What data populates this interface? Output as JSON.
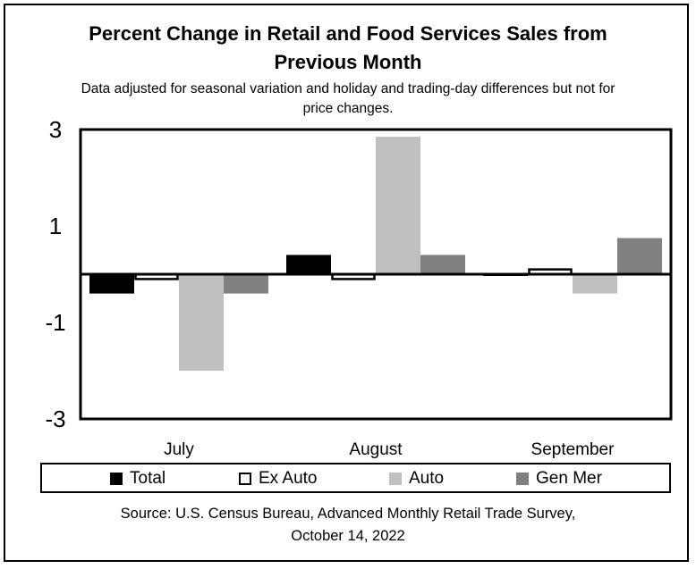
{
  "chart_data": {
    "type": "bar",
    "title_line1": "Percent Change in Retail and Food Services Sales from",
    "title_line2": "Previous Month",
    "subtitle_line1": "Data adjusted for seasonal variation and holiday and trading-day differences but not for",
    "subtitle_line2": "price changes.",
    "categories": [
      "July",
      "August",
      "September"
    ],
    "series": [
      {
        "name": "Total",
        "color": "#000000",
        "values": [
          -0.4,
          0.4,
          0.0
        ]
      },
      {
        "name": "Ex Auto",
        "color": "#ffffff",
        "stroke": "#000000",
        "values": [
          -0.1,
          -0.1,
          0.1
        ]
      },
      {
        "name": "Auto",
        "color": "#c0c0c0",
        "values": [
          -2.0,
          2.85,
          -0.4
        ]
      },
      {
        "name": "Gen Mer",
        "color": "#808080",
        "values": [
          -0.4,
          0.4,
          0.75
        ]
      }
    ],
    "yticks": [
      "3",
      "1",
      "-1",
      "-3"
    ],
    "ytick_values": [
      3,
      1,
      -1,
      -3
    ],
    "ylim": [
      -3,
      3
    ],
    "grid": false,
    "legend_position": "bottom"
  },
  "footer": {
    "source_line1": "Source: U.S. Census Bureau, Advanced Monthly Retail Trade Survey,",
    "source_line2": "October 14, 2022"
  }
}
